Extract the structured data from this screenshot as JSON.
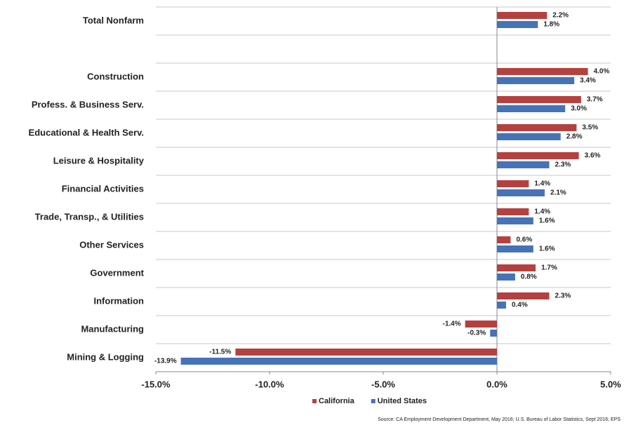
{
  "chart_data": {
    "type": "hbar",
    "categories": [
      "Total Nonfarm",
      null,
      "Construction",
      "Profess. & Business Serv.",
      "Educational & Health Serv.",
      "Leisure & Hospitality",
      "Financial Activities",
      "Trade, Transp., & Utilities",
      "Other Services",
      "Government",
      "Information",
      "Manufacturing",
      "Mining & Logging"
    ],
    "series": [
      {
        "name": "California",
        "color": "#b5413f",
        "values": [
          2.2,
          null,
          4.0,
          3.7,
          3.5,
          3.6,
          1.4,
          1.4,
          0.6,
          1.7,
          2.3,
          -1.4,
          -11.5
        ],
        "value_labels": [
          "2.2%",
          null,
          "4.0%",
          "3.7%",
          "3.5%",
          "3.6%",
          "1.4%",
          "1.4%",
          "0.6%",
          "1.7%",
          "2.3%",
          "-1.4%",
          "-11.5%"
        ]
      },
      {
        "name": "United States",
        "color": "#4673b8",
        "values": [
          1.8,
          null,
          3.4,
          3.0,
          2.8,
          2.3,
          2.1,
          1.6,
          1.6,
          0.8,
          0.4,
          -0.3,
          -13.9
        ],
        "value_labels": [
          "1.8%",
          null,
          "3.4%",
          "3.0%",
          "2.8%",
          "2.3%",
          "2.1%",
          "1.6%",
          "1.6%",
          "0.8%",
          "0.4%",
          "-0.3%",
          "-13.9%"
        ]
      }
    ],
    "xlim": [
      -15,
      5
    ],
    "xticks": [
      {
        "value": -15,
        "label": "-15.0%"
      },
      {
        "value": -10,
        "label": "-10.0%"
      },
      {
        "value": -5,
        "label": "-5.0%"
      },
      {
        "value": 0,
        "label": "0.0%"
      },
      {
        "value": 5,
        "label": "5.0%"
      }
    ],
    "legend": "bottom",
    "source": "Source:  CA Employment  Development Department, May 2016; U.S. Bureau of Labor Statistics, Sept 2016; EPS"
  }
}
